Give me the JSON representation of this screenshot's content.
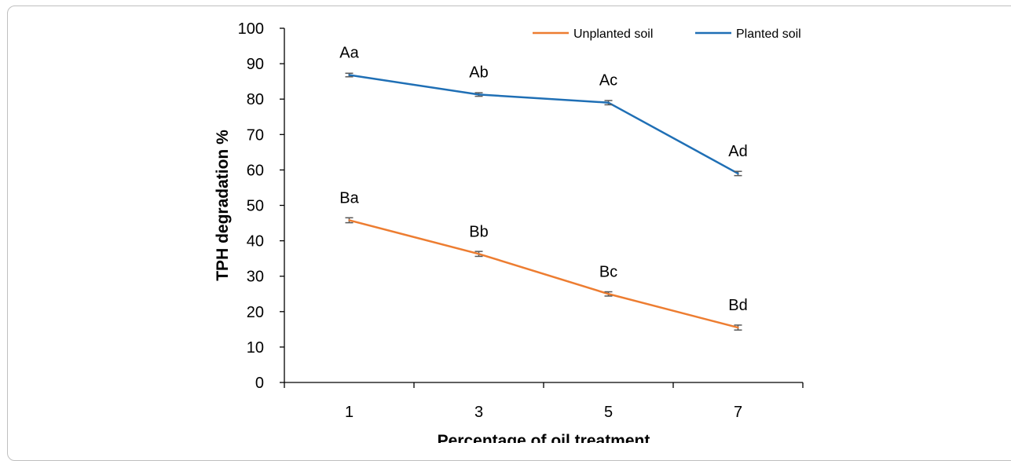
{
  "chart_data": {
    "type": "line",
    "x": [
      1,
      3,
      5,
      7
    ],
    "xlabel": "Percentage of oil treatment",
    "ylabel": "TPH degradation %",
    "ylim": [
      0,
      100
    ],
    "yticks": [
      0,
      10,
      20,
      30,
      40,
      50,
      60,
      70,
      80,
      90,
      100
    ],
    "grid": false,
    "legend_position": "top-right",
    "series": [
      {
        "name": "Unplanted soil",
        "color": "#ED7D31",
        "values": [
          45.8,
          36.3,
          25.0,
          15.5
        ],
        "errors": [
          0.7,
          0.7,
          0.6,
          0.7
        ],
        "labels": [
          "Ba",
          "Bb",
          "Bc",
          "Bd"
        ]
      },
      {
        "name": "Planted soil",
        "color": "#1F6FB5",
        "values": [
          86.8,
          81.3,
          79.0,
          59.0
        ],
        "errors": [
          0.5,
          0.5,
          0.6,
          0.6
        ],
        "labels": [
          "Aa",
          "Ab",
          "Ac",
          "Ad"
        ]
      }
    ]
  }
}
